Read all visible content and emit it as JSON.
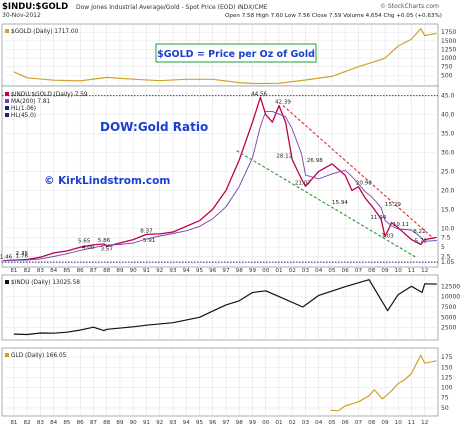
{
  "header": {
    "title": "$INDU:$GOLD",
    "subtitle": "Dow Jones Industrial Average/Gold - Spot Price (EOD) INDX/CME",
    "date": "30-Nov-2012",
    "credit": "© StockCharts.com",
    "stats": "Open 7.58  High 7.60  Low 7.56  Close 7.59  Volume 4,654  Chg +0.05 (+0.63%)"
  },
  "colors": {
    "gold": "#d4a02a",
    "ratio": "#c0004b",
    "ma": "#7a3fb0",
    "hline": "#1a237e",
    "trend_red": "#e03030",
    "trend_green": "#2e9a2e",
    "annotation_blue": "#1a3fd0",
    "box_green": "#1e9e3a",
    "indu": "#111111"
  },
  "annotations": {
    "gold_box": "$GOLD = Price per Oz of Gold",
    "ratio_title": "DOW:Gold Ratio",
    "site": "© KirkLindstrom.com"
  },
  "chart_data": [
    {
      "type": "line",
      "panel": "gold",
      "legend": "$GOLD (Daily) 1717.00",
      "x": [
        1981,
        1982,
        1984,
        1986,
        1988,
        1990,
        1992,
        1994,
        1996,
        1998,
        1999,
        2001,
        2002,
        2003,
        2004,
        2005,
        2006,
        2007,
        2008,
        2009,
        2010,
        2011,
        2011.7,
        2012,
        2012.9
      ],
      "y": [
        600,
        430,
        360,
        340,
        440,
        390,
        345,
        385,
        385,
        290,
        265,
        270,
        320,
        365,
        420,
        470,
        610,
        750,
        870,
        1000,
        1350,
        1550,
        1850,
        1650,
        1717
      ],
      "y_ticks": [
        1750,
        1500,
        1250,
        1000,
        750,
        500
      ],
      "ylim": [
        250,
        1900
      ]
    },
    {
      "type": "line",
      "panel": "ratio",
      "legend": [
        "$INDU:$GOLD (Daily) 7.59",
        "MA(200) 7.81",
        "HL(1.06)",
        "HL(45.0)"
      ],
      "x": [
        1980.2,
        1981,
        1982,
        1983,
        1984,
        1985,
        1986,
        1987,
        1987.8,
        1988,
        1989,
        1990,
        1991,
        1992,
        1993,
        1994,
        1995,
        1996,
        1997,
        1998,
        1999,
        1999.6,
        2000,
        2000.5,
        2001,
        2001.5,
        2002,
        2002.7,
        2003,
        2004,
        2005,
        2006,
        2006.5,
        2007,
        2007.5,
        2008,
        2008.7,
        2009,
        2009.5,
        2010,
        2011,
        2011.7,
        2012,
        2012.9
      ],
      "y": [
        1.46,
        1.6,
        1.76,
        2.35,
        3.5,
        4.0,
        5.0,
        5.6,
        5.86,
        5.2,
        6.1,
        7.0,
        8.37,
        8.5,
        9.0,
        10.5,
        12.0,
        15.0,
        20.0,
        28.0,
        38.0,
        44.56,
        40.0,
        38.0,
        42.39,
        38.0,
        28.12,
        23.0,
        21.07,
        25.0,
        26.98,
        24.0,
        20.0,
        20.98,
        18.0,
        15.94,
        12.5,
        7.8,
        11.5,
        10.11,
        7.0,
        5.71,
        7.0,
        7.59
      ],
      "labels": [
        {
          "x": 1980.4,
          "y": 1.46,
          "text": "1.46"
        },
        {
          "x": 1981.6,
          "y": 2.35,
          "text": "2.35"
        },
        {
          "x": 1981.6,
          "y": 1.76,
          "text": "1.76"
        },
        {
          "x": 1986.3,
          "y": 5.65,
          "text": "5.65"
        },
        {
          "x": 1987.8,
          "y": 5.86,
          "text": "5.86"
        },
        {
          "x": 1986.6,
          "y": 4.0,
          "text": "4.00"
        },
        {
          "x": 1988.0,
          "y": 3.57,
          "text": "3.57"
        },
        {
          "x": 1991.0,
          "y": 8.37,
          "text": "8.37"
        },
        {
          "x": 1991.2,
          "y": 5.91,
          "text": "5.91"
        },
        {
          "x": 1999.5,
          "y": 44.56,
          "text": "44.56"
        },
        {
          "x": 2001.3,
          "y": 42.39,
          "text": "42.39"
        },
        {
          "x": 2001.4,
          "y": 28.12,
          "text": "28.12"
        },
        {
          "x": 2002.8,
          "y": 21.07,
          "text": "21.07"
        },
        {
          "x": 2003.7,
          "y": 26.98,
          "text": "26.98"
        },
        {
          "x": 2007.4,
          "y": 20.98,
          "text": "20.98"
        },
        {
          "x": 2005.6,
          "y": 15.94,
          "text": "15.94"
        },
        {
          "x": 2009.6,
          "y": 15.29,
          "text": "15.29"
        },
        {
          "x": 2008.5,
          "y": 11.94,
          "text": "11.94"
        },
        {
          "x": 2010.2,
          "y": 10.11,
          "text": "10.11"
        },
        {
          "x": 2009.2,
          "y": 7.03,
          "text": "7.03"
        },
        {
          "x": 2011.6,
          "y": 8.22,
          "text": "8.22"
        },
        {
          "x": 2011.7,
          "y": 5.71,
          "text": "5.71"
        }
      ],
      "hlines": [
        45.0,
        1.06
      ],
      "y_ticks": [
        45.0,
        40.0,
        35.0,
        30.0,
        25.0,
        20.0,
        15.0,
        10.0,
        7.5,
        5.0,
        2.5,
        1.05
      ],
      "ylim": [
        0.3,
        46.5
      ]
    },
    {
      "type": "line",
      "panel": "indu",
      "legend": "$INDU (Daily) 13025.58",
      "x": [
        1981,
        1982,
        1983,
        1984,
        1985,
        1986,
        1987,
        1987.8,
        1988,
        1990,
        1991,
        1993,
        1995,
        1996,
        1997,
        1998,
        1999,
        2000,
        2001,
        2002.8,
        2004,
        2006,
        2007.8,
        2009.2,
        2010,
        2011,
        2011.8,
        2012,
        2012.9
      ],
      "y": [
        950,
        850,
        1200,
        1150,
        1400,
        1900,
        2600,
        1800,
        2100,
        2700,
        3100,
        3700,
        5000,
        6500,
        8000,
        9000,
        11000,
        11400,
        10000,
        7500,
        10300,
        12400,
        14100,
        6600,
        10500,
        12500,
        11000,
        13100,
        13025
      ],
      "y_ticks": [
        12500,
        10000,
        7500,
        5000,
        2500
      ],
      "ylim": [
        0,
        14500
      ]
    },
    {
      "type": "line",
      "panel": "gld",
      "legend": "GLD (Daily) 166.05",
      "x": [
        2004.9,
        2005.5,
        2006,
        2006.5,
        2007,
        2007.8,
        2008.2,
        2008.8,
        2009.5,
        2010,
        2010.5,
        2011,
        2011.7,
        2012,
        2012.9
      ],
      "y": [
        44,
        43,
        55,
        60,
        65,
        80,
        95,
        72,
        92,
        110,
        120,
        135,
        180,
        160,
        166
      ],
      "y_ticks": [
        175,
        150,
        125,
        100,
        75,
        50
      ],
      "ylim": [
        35,
        190
      ]
    }
  ],
  "x_ticks": [
    "81",
    "82",
    "83",
    "84",
    "85",
    "86",
    "87",
    "88",
    "89",
    "90",
    "91",
    "92",
    "93",
    "94",
    "95",
    "96",
    "97",
    "98",
    "99",
    "00",
    "01",
    "02",
    "03",
    "04",
    "05",
    "06",
    "07",
    "08",
    "09",
    "10",
    "11",
    "12"
  ]
}
